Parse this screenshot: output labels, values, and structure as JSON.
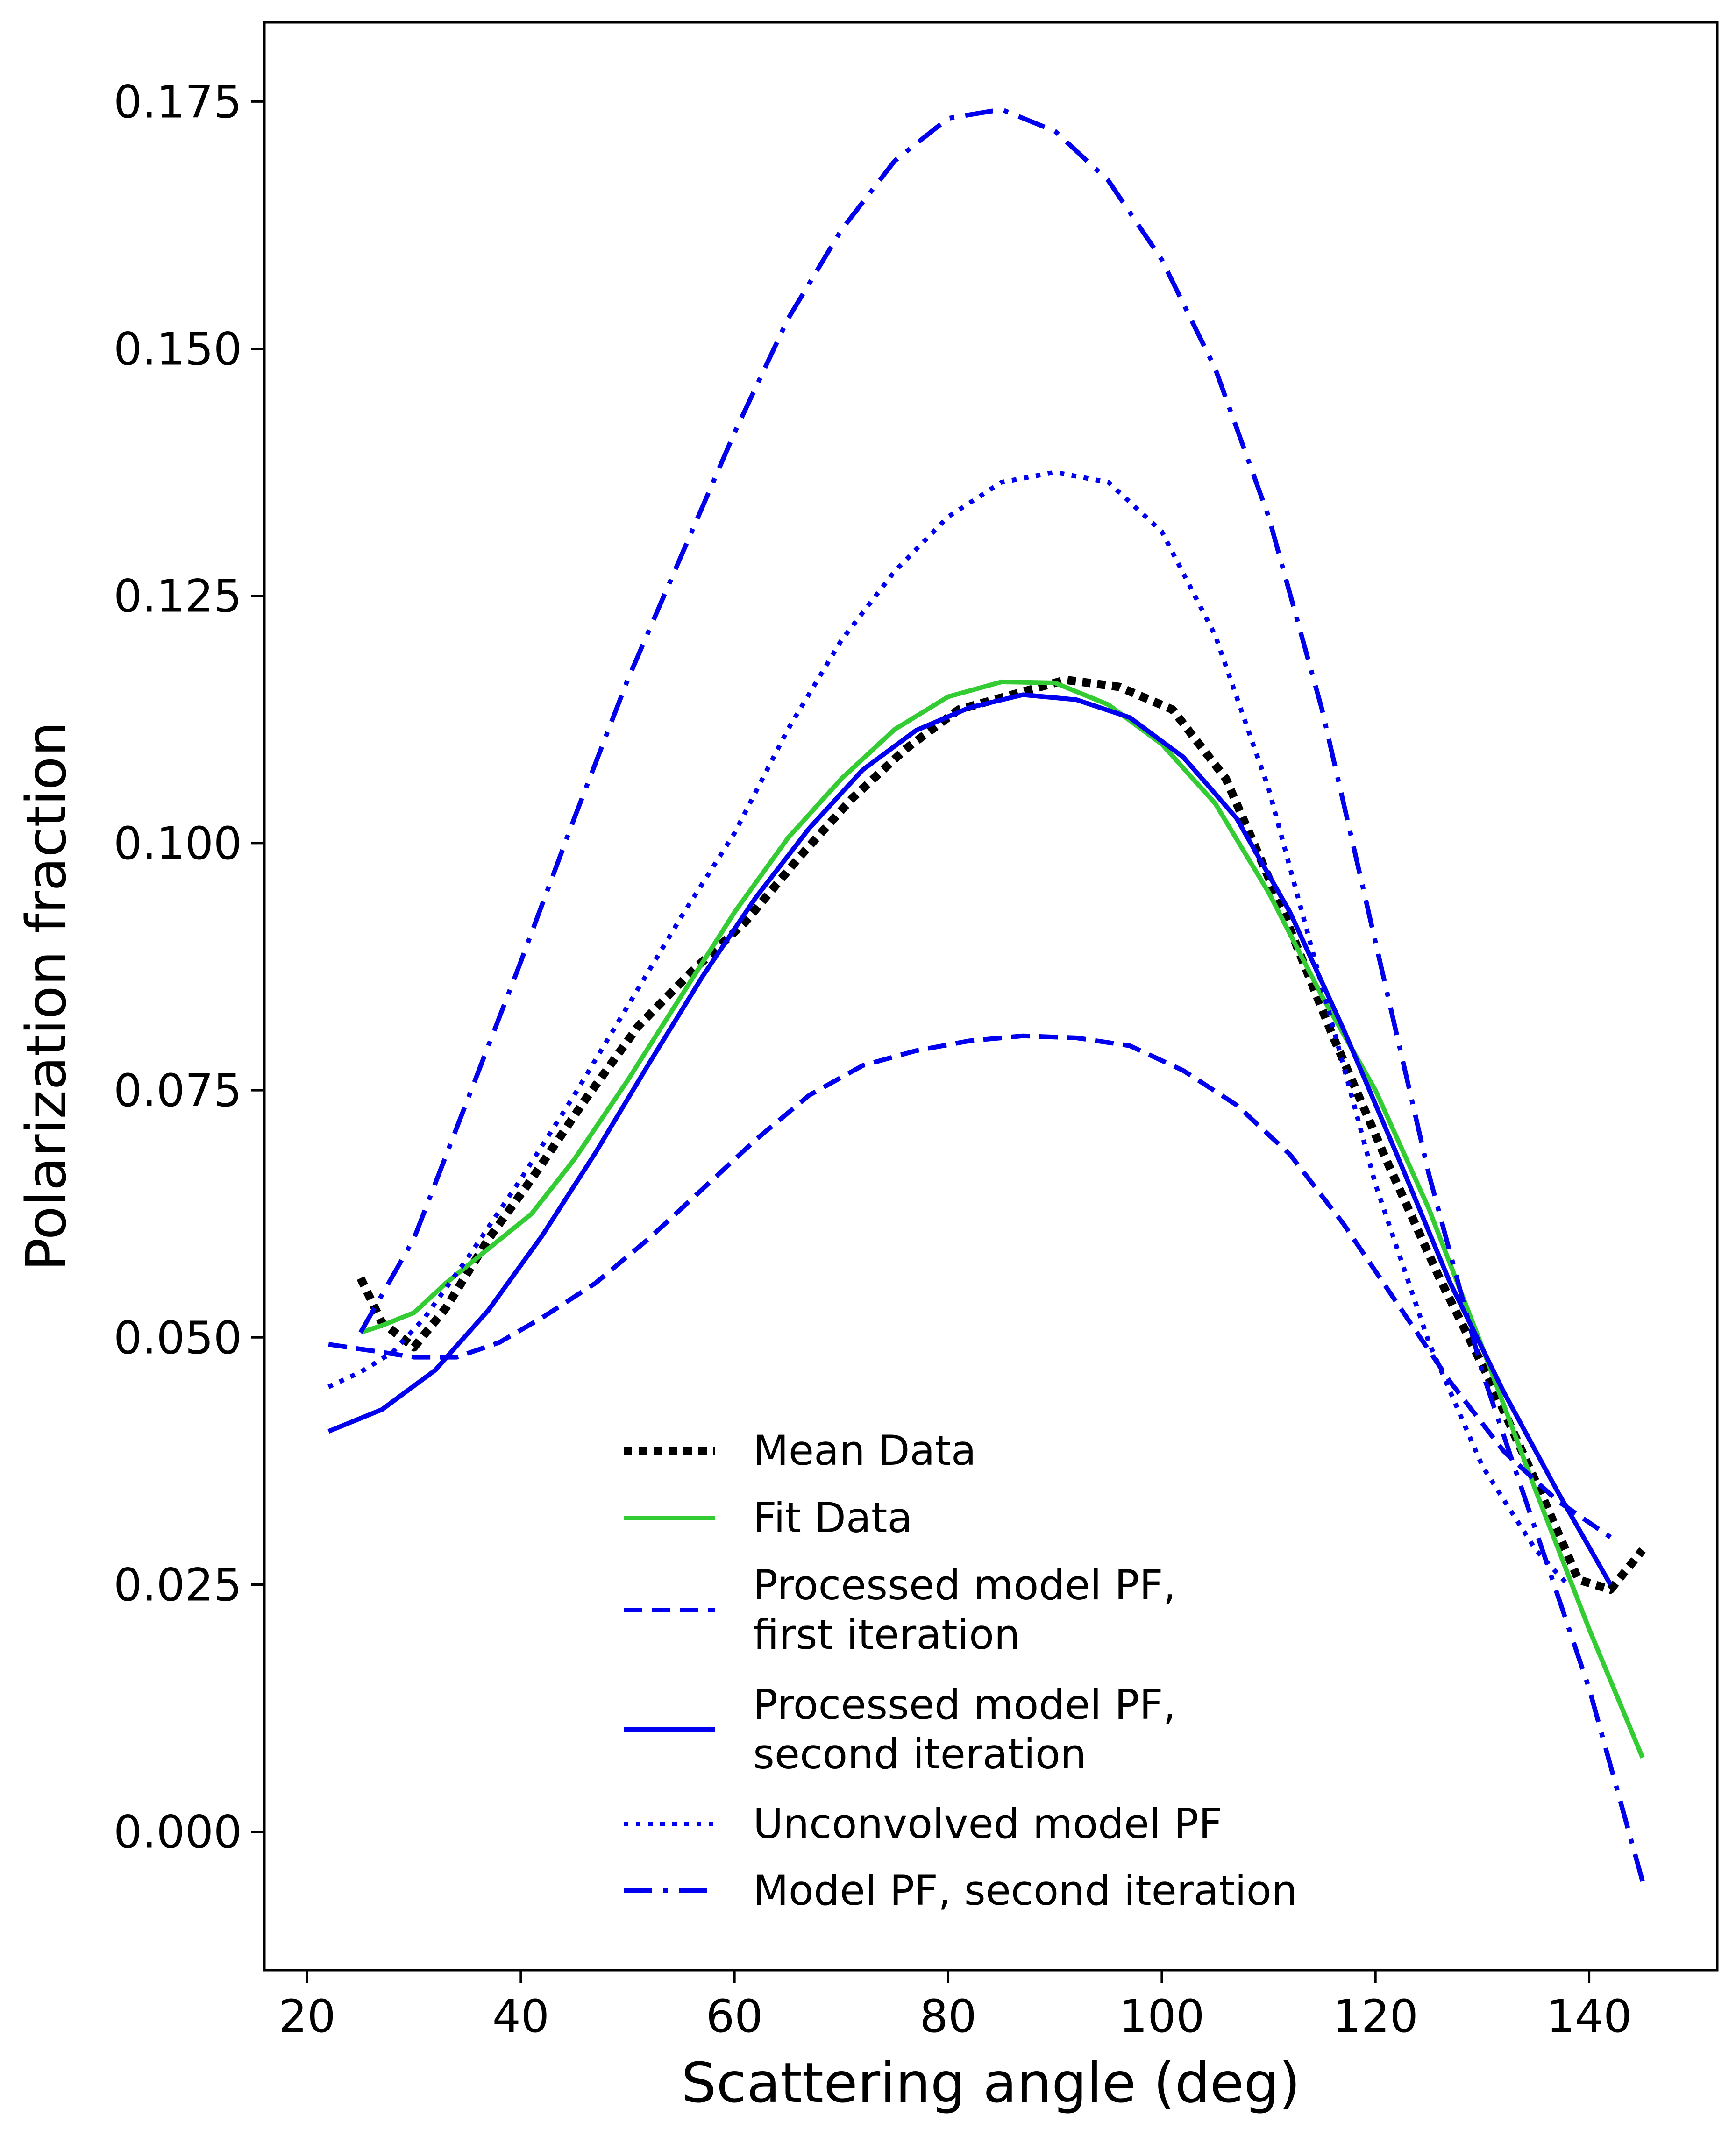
{
  "chart_data": {
    "type": "line",
    "title": "",
    "xlabel": "Scattering angle (deg)",
    "ylabel": "Polarization fraction",
    "xlim": [
      16,
      152
    ],
    "ylim": [
      -0.014,
      0.183
    ],
    "xticks": [
      20,
      40,
      60,
      80,
      100,
      120,
      140
    ],
    "yticks": [
      0.0,
      0.025,
      0.05,
      0.075,
      0.1,
      0.125,
      0.15,
      0.175
    ],
    "xtick_labels": [
      "20",
      "40",
      "60",
      "80",
      "100",
      "120",
      "140"
    ],
    "ytick_labels": [
      "0.000",
      "0.025",
      "0.050",
      "0.075",
      "0.100",
      "0.125",
      "0.150",
      "0.175"
    ],
    "grid": false,
    "legend_position": "lower-center",
    "series": [
      {
        "name": "Mean Data",
        "color": "#000000",
        "style": "dotted-thick",
        "x": [
          25,
          27,
          30,
          33,
          37,
          41,
          46,
          51,
          56,
          61,
          66,
          71,
          76,
          81,
          86,
          91,
          96,
          101,
          106,
          111,
          116,
          121,
          126,
          131,
          136,
          139,
          142,
          145
        ],
        "y": [
          0.056,
          0.0515,
          0.049,
          0.053,
          0.06,
          0.066,
          0.074,
          0.0815,
          0.087,
          0.092,
          0.0985,
          0.1045,
          0.1095,
          0.1135,
          0.115,
          0.1165,
          0.1158,
          0.1135,
          0.1065,
          0.094,
          0.0805,
          0.068,
          0.056,
          0.045,
          0.033,
          0.0255,
          0.0245,
          0.0285
        ]
      },
      {
        "name": "Fit Data",
        "color": "#33cc33",
        "style": "solid",
        "x": [
          25,
          27,
          30,
          33,
          37,
          41,
          45,
          50,
          55,
          60,
          65,
          70,
          75,
          80,
          85,
          90,
          95,
          100,
          105,
          110,
          115,
          120,
          125,
          130,
          135,
          140,
          145
        ],
        "y": [
          0.0505,
          0.0512,
          0.0525,
          0.0555,
          0.059,
          0.0625,
          0.068,
          0.076,
          0.0845,
          0.093,
          0.1005,
          0.1065,
          0.1115,
          0.1148,
          0.1163,
          0.1162,
          0.114,
          0.11,
          0.104,
          0.095,
          0.0845,
          0.075,
          0.063,
          0.049,
          0.0345,
          0.0205,
          0.0075
        ]
      },
      {
        "name": "Processed model PF, first iteration",
        "color": "#0000ee",
        "style": "dashed",
        "x": [
          22,
          27,
          30,
          34,
          38,
          42,
          47,
          52,
          57,
          62,
          67,
          72,
          77,
          82,
          87,
          92,
          97,
          102,
          107,
          112,
          117,
          122,
          127,
          132,
          137,
          142
        ],
        "y": [
          0.0493,
          0.0485,
          0.048,
          0.048,
          0.0495,
          0.052,
          0.0555,
          0.06,
          0.065,
          0.07,
          0.0745,
          0.0775,
          0.079,
          0.08,
          0.0805,
          0.0803,
          0.0795,
          0.077,
          0.0735,
          0.0685,
          0.0615,
          0.0535,
          0.0455,
          0.0385,
          0.0335,
          0.0298
        ]
      },
      {
        "name": "Processed model PF, second iteration",
        "color": "#0000ee",
        "style": "solid",
        "x": [
          22,
          27,
          32,
          37,
          42,
          47,
          52,
          57,
          62,
          67,
          72,
          77,
          82,
          87,
          92,
          97,
          102,
          107,
          112,
          117,
          122,
          127,
          132,
          137,
          142
        ],
        "y": [
          0.0405,
          0.0427,
          0.0467,
          0.0528,
          0.0603,
          0.0687,
          0.0777,
          0.0865,
          0.0945,
          0.1015,
          0.1074,
          0.1114,
          0.1137,
          0.115,
          0.1145,
          0.1127,
          0.1087,
          0.1025,
          0.093,
          0.0812,
          0.0685,
          0.0555,
          0.0445,
          0.0345,
          0.025
        ]
      },
      {
        "name": "Unconvolved model PF",
        "color": "#0000ee",
        "style": "dotted",
        "x": [
          22,
          25,
          28,
          31,
          35,
          40,
          45,
          50,
          55,
          60,
          65,
          70,
          75,
          80,
          85,
          90,
          95,
          100,
          105,
          110,
          115,
          120,
          125,
          130,
          135,
          138
        ],
        "y": [
          0.045,
          0.0465,
          0.0485,
          0.052,
          0.058,
          0.066,
          0.0745,
          0.0835,
          0.0925,
          0.101,
          0.1115,
          0.1205,
          0.1275,
          0.133,
          0.1365,
          0.1375,
          0.1365,
          0.1315,
          0.121,
          0.1055,
          0.0855,
          0.0655,
          0.0495,
          0.037,
          0.0285,
          0.025
        ]
      },
      {
        "name": "Model PF, second iteration",
        "color": "#0000ee",
        "style": "dashdot",
        "x": [
          25,
          30,
          35,
          40,
          45,
          50,
          55,
          60,
          65,
          70,
          75,
          80,
          85,
          90,
          95,
          100,
          105,
          110,
          115,
          120,
          125,
          130,
          135,
          140,
          145
        ],
        "y": [
          0.0505,
          0.06,
          0.074,
          0.088,
          0.1025,
          0.1165,
          0.129,
          0.1415,
          0.153,
          0.162,
          0.169,
          0.1733,
          0.1742,
          0.172,
          0.167,
          0.159,
          0.148,
          0.133,
          0.1135,
          0.09,
          0.0665,
          0.0465,
          0.0305,
          0.0145,
          -0.005
        ]
      }
    ]
  }
}
